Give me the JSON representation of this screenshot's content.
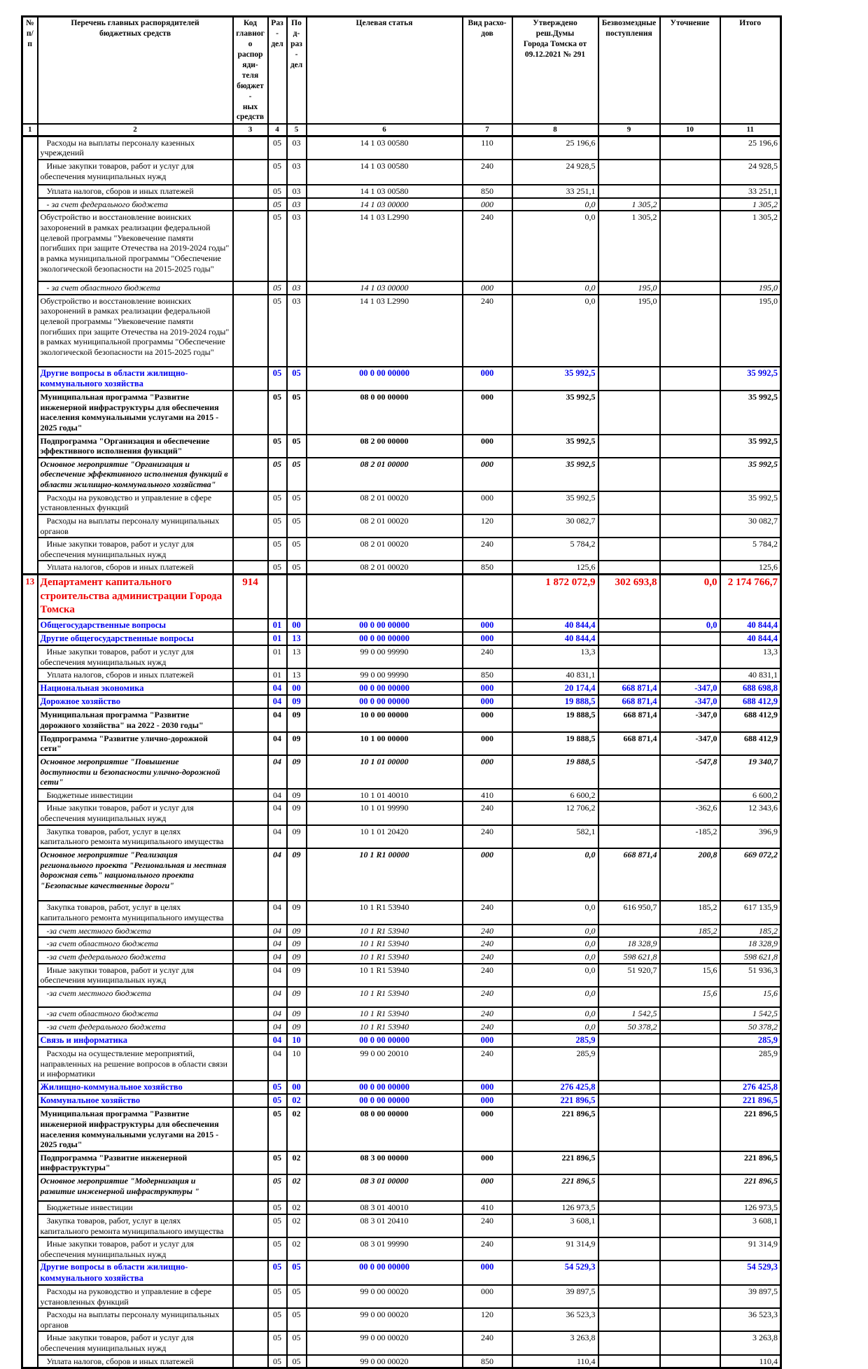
{
  "colors": {
    "section_blue": "#0000ee",
    "department_red": "#ee0000",
    "text": "#000000",
    "grid": "#000000",
    "page_bg": "#ffffff"
  },
  "table": {
    "headers": [
      "№\nп/п",
      "Перечень главных распорядителей\nбюджетных средств",
      "Код\nглавного\nраспоряди-\nтеля бюджет-\nных средств",
      "Раз-\nдел",
      "Под-\nраз-\nдел",
      "Целевая статья",
      "Вид расхо-\nдов",
      "Утверждено реш.Думы\nГорода Томска от\n09.12.2021 № 291",
      "Безвозмездные\nпоступления",
      "Уточнение",
      "Итого"
    ],
    "column_numbers": [
      "1",
      "2",
      "3",
      "4",
      "5",
      "6",
      "7",
      "8",
      "9",
      "10",
      "11"
    ],
    "rows": [
      {
        "t": "Расходы на выплаты персоналу казенных учреждений",
        "r": "05",
        "p": "03",
        "cs": "14 1 03 00580",
        "v": "110",
        "a": "25 196,6",
        "tot": "25 196,6",
        "s": "n",
        "ind": 1
      },
      {
        "t": "Иные закупки товаров, работ и услуг для обеспечения муниципальных нужд",
        "r": "05",
        "p": "03",
        "cs": "14 1 03 00580",
        "v": "240",
        "a": "24 928,5",
        "tot": "24 928,5",
        "s": "n",
        "ind": 1,
        "pad": 4
      },
      {
        "t": "Уплата налогов, сборов и иных платежей",
        "r": "05",
        "p": "03",
        "cs": "14 1 03 00580",
        "v": "850",
        "a": "33 251,1",
        "tot": "33 251,1",
        "s": "n",
        "ind": 1
      },
      {
        "t": "- за счет федерального бюджета",
        "r": "05",
        "p": "03",
        "cs": "14 1 03 00000",
        "v": "000",
        "a": "0,0",
        "g": "1 305,2",
        "tot": "1 305,2",
        "s": "i",
        "ind": 1
      },
      {
        "t": "Обустройство и восстановление воинских захоронений в рамках реализации федеральной целевой программы \"Увековечение памяти погибших при защите Отечества на 2019-2024 годы\" в рамка муниципальной программы \"Обеспечение экологической безопасности на 2015-2025 годы\"",
        "r": "05",
        "p": "03",
        "cs": "14 1 03 L2990",
        "v": "240",
        "a": "0,0",
        "g": "1 305,2",
        "tot": "1 305,2",
        "s": "n",
        "pad": 10
      },
      {
        "t": "- за счет областного бюджета",
        "r": "05",
        "p": "03",
        "cs": "14 1 03 00000",
        "v": "000",
        "a": "0,0",
        "g": "195,0",
        "tot": "195,0",
        "s": "i",
        "ind": 1
      },
      {
        "t": "Обустройство и восстановление воинских захоронений в рамках реализации федеральной целевой программы \"Увековечение памяти погибших при защите Отечества на 2019-2024 годы\" в рамках муниципальной программы \"Обеспечение экологической безопасности на 2015-2025 годы\"",
        "r": "05",
        "p": "03",
        "cs": "14 1 03 L2990",
        "v": "240",
        "a": "0,0",
        "g": "195,0",
        "tot": "195,0",
        "s": "n",
        "pad": 12
      },
      {
        "t": "Другие вопросы в области жилищно-коммунального хозяйства",
        "r": "05",
        "p": "05",
        "cs": "00 0 00 00000",
        "v": "000",
        "a": "35 992,5",
        "tot": "35 992,5",
        "s": "blue"
      },
      {
        "t": "Муниципальная программа \"Развитие инженерной инфраструктуры для обеспечения населения коммунальными услугами на 2015 - 2025 годы\"",
        "r": "05",
        "p": "05",
        "cs": "08 0 00 00000",
        "v": "000",
        "a": "35 992,5",
        "tot": "35 992,5",
        "s": "b"
      },
      {
        "t": "Подпрограмма \"Организация и обеспечение эффективного исполнения функций\"",
        "r": "05",
        "p": "05",
        "cs": "08 2 00 00000",
        "v": "000",
        "a": "35 992,5",
        "tot": "35 992,5",
        "s": "b"
      },
      {
        "t": "Основное мероприятие \"Организация и обеспечение эффективного исполнения функций в области жилищно-коммунального хозяйства\"",
        "r": "05",
        "p": "05",
        "cs": "08 2 01 00000",
        "v": "000",
        "a": "35 992,5",
        "tot": "35 992,5",
        "s": "bi"
      },
      {
        "t": "Расходы на руководство и управление в сфере установленных функций",
        "r": "05",
        "p": "05",
        "cs": "08 2 01 00020",
        "v": "000",
        "a": "35 992,5",
        "tot": "35 992,5",
        "s": "n",
        "ind": 1
      },
      {
        "t": "Расходы на выплаты персоналу муниципальных органов",
        "r": "05",
        "p": "05",
        "cs": "08 2 01 00020",
        "v": "120",
        "a": "30 082,7",
        "tot": "30 082,7",
        "s": "n",
        "ind": 1
      },
      {
        "t": "Иные закупки товаров, работ и услуг для обеспечения муниципальных нужд",
        "r": "05",
        "p": "05",
        "cs": "08 2 01 00020",
        "v": "240",
        "a": "5 784,2",
        "tot": "5 784,2",
        "s": "n",
        "ind": 1
      },
      {
        "t": "Уплата налогов, сборов и иных платежей",
        "r": "05",
        "p": "05",
        "cs": "08 2 01 00020",
        "v": "850",
        "a": "125,6",
        "tot": "125,6",
        "s": "n",
        "ind": 1
      },
      {
        "num": "13",
        "t": "Департамент капитального строительства администрации Города Томска",
        "c": "914",
        "a": "1 872 072,9",
        "g": "302 693,8",
        "u": "0,0",
        "tot": "2 174 766,7",
        "s": "red"
      },
      {
        "t": "Общегосударственные вопросы",
        "r": "01",
        "p": "00",
        "cs": "00 0 00 00000",
        "v": "000",
        "a": "40 844,4",
        "u": "0,0",
        "tot": "40 844,4",
        "s": "blue"
      },
      {
        "t": "Другие общегосударственные вопросы",
        "r": "01",
        "p": "13",
        "cs": "00 0 00 00000",
        "v": "000",
        "a": "40 844,4",
        "tot": "40 844,4",
        "s": "blue"
      },
      {
        "t": "Иные закупки товаров, работ и услуг для обеспечения муниципальных нужд",
        "r": "01",
        "p": "13",
        "cs": "99 0 00 99990",
        "v": "240",
        "a": "13,3",
        "tot": "13,3",
        "s": "n",
        "ind": 1
      },
      {
        "t": "Уплата налогов, сборов и иных платежей",
        "r": "01",
        "p": "13",
        "cs": "99 0 00 99990",
        "v": "850",
        "a": "40 831,1",
        "tot": "40 831,1",
        "s": "n",
        "ind": 1
      },
      {
        "t": "Национальная экономика",
        "r": "04",
        "p": "00",
        "cs": "00 0 00 00000",
        "v": "000",
        "a": "20 174,4",
        "g": "668 871,4",
        "u": "-347,0",
        "tot": "688 698,8",
        "s": "blue"
      },
      {
        "t": "Дорожное хозяйство",
        "r": "04",
        "p": "09",
        "cs": "00 0 00 00000",
        "v": "000",
        "a": "19 888,5",
        "g": "668 871,4",
        "u": "-347,0",
        "tot": "688 412,9",
        "s": "blue"
      },
      {
        "t": "Муниципальная программа \"Развитие дорожного хозяйства\" на 2022 - 2030 годы\"",
        "r": "04",
        "p": "09",
        "cs": "10 0 00 00000",
        "v": "000",
        "a": "19 888,5",
        "g": "668 871,4",
        "u": "-347,0",
        "tot": "688 412,9",
        "s": "b"
      },
      {
        "t": "Подпрограмма \"Развитие улично-дорожной сети\"",
        "r": "04",
        "p": "09",
        "cs": "10 1 00 00000",
        "v": "000",
        "a": "19 888,5",
        "g": "668 871,4",
        "u": "-347,0",
        "tot": "688 412,9",
        "s": "b"
      },
      {
        "t": "Основное мероприятие \"Повышение доступности и безопасности улично-дорожной сети\"",
        "r": "04",
        "p": "09",
        "cs": "10 1 01 00000",
        "v": "000",
        "a": "19 888,5",
        "u": "-547,8",
        "tot": "19 340,7",
        "s": "bi"
      },
      {
        "t": "Бюджетные инвестиции",
        "r": "04",
        "p": "09",
        "cs": "10 1 01 40010",
        "v": "410",
        "a": "6 600,2",
        "tot": "6 600,2",
        "s": "n",
        "ind": 1
      },
      {
        "t": "Иные закупки товаров, работ и услуг для обеспечения муниципальных нужд",
        "r": "04",
        "p": "09",
        "cs": "10 1 01 99990",
        "v": "240",
        "a": "12 706,2",
        "u": "-362,6",
        "tot": "12 343,6",
        "s": "n",
        "ind": 1
      },
      {
        "t": "Закупка товаров, работ, услуг в целях капитального ремонта муниципального имущества",
        "r": "04",
        "p": "09",
        "cs": "10 1 01 20420",
        "v": "240",
        "a": "582,1",
        "u": "-185,2",
        "tot": "396,9",
        "s": "n",
        "ind": 1
      },
      {
        "t": "Основное мероприятие \"Реализация регионального проекта \"Региональная и местная дорожная сеть\" национального проекта \"Безопасные качественные дороги\"",
        "r": "04",
        "p": "09",
        "cs": "10 1 R1 00000",
        "v": "000",
        "a": "0,0",
        "g": "668 871,4",
        "u": "200,8",
        "tot": "669 072,2",
        "s": "bi",
        "pad": 14
      },
      {
        "t": "Закупка товаров, работ, услуг в целях капитального ремонта муниципального имущества",
        "r": "04",
        "p": "09",
        "cs": "10 1 R1 53940",
        "v": "240",
        "a": "0,0",
        "g": "616 950,7",
        "u": "185,2",
        "tot": "617 135,9",
        "s": "n",
        "ind": 1
      },
      {
        "t": "-за счет местного бюджета",
        "r": "04",
        "p": "09",
        "cs": "10 1 R1 53940",
        "v": "240",
        "a": "0,0",
        "u": "185,2",
        "tot": "185,2",
        "s": "i",
        "ind": 1
      },
      {
        "t": "-за счет областного бюджета",
        "r": "04",
        "p": "09",
        "cs": "10 1 R1 53940",
        "v": "240",
        "a": "0,0",
        "g": "18 328,9",
        "tot": "18 328,9",
        "s": "i",
        "ind": 1
      },
      {
        "t": "-за счет федерального бюджета",
        "r": "04",
        "p": "09",
        "cs": "10 1 R1 53940",
        "v": "240",
        "a": "0,0",
        "g": "598 621,8",
        "tot": "598 621,8",
        "s": "i",
        "ind": 1
      },
      {
        "t": "Иные закупки товаров, работ и услуг для обеспечения муниципальных нужд",
        "r": "04",
        "p": "09",
        "cs": "10 1 R1 53940",
        "v": "240",
        "a": "0,0",
        "g": "51 920,7",
        "u": "15,6",
        "tot": "51 936,3",
        "s": "n",
        "ind": 1
      },
      {
        "t": "-за счет местного бюджета",
        "r": "04",
        "p": "09",
        "cs": "10 1 R1 53940",
        "v": "240",
        "a": "0,0",
        "u": "15,6",
        "tot": "15,6",
        "s": "i",
        "ind": 1,
        "pad": 12
      },
      {
        "t": "-за счет областного бюджета",
        "r": "04",
        "p": "09",
        "cs": "10 1 R1 53940",
        "v": "240",
        "a": "0,0",
        "g": "1 542,5",
        "tot": "1 542,5",
        "s": "i",
        "ind": 1
      },
      {
        "t": "-за счет федерального бюджета",
        "r": "04",
        "p": "09",
        "cs": "10 1 R1 53940",
        "v": "240",
        "a": "0,0",
        "g": "50 378,2",
        "tot": "50 378,2",
        "s": "i",
        "ind": 1
      },
      {
        "t": "Связь и информатика",
        "r": "04",
        "p": "10",
        "cs": "00 0 00 00000",
        "v": "000",
        "a": "285,9",
        "tot": "285,9",
        "s": "blue"
      },
      {
        "t": "Расходы на осуществление мероприятий, направленных на решение вопросов в области связи и информатики",
        "r": "04",
        "p": "10",
        "cs": "99 0 00 20010",
        "v": "240",
        "a": "285,9",
        "tot": "285,9",
        "s": "n",
        "ind": 1
      },
      {
        "t": "Жилищно-коммунальное хозяйство",
        "r": "05",
        "p": "00",
        "cs": "00 0 00 00000",
        "v": "000",
        "a": "276 425,8",
        "tot": "276 425,8",
        "s": "blue"
      },
      {
        "t": "Коммунальное хозяйство",
        "r": "05",
        "p": "02",
        "cs": "00 0 00 00000",
        "v": "000",
        "a": "221 896,5",
        "tot": "221 896,5",
        "s": "blue"
      },
      {
        "t": "Муниципальная программа \"Развитие инженерной инфраструктуры для обеспечения населения коммунальными услугами на 2015 - 2025 годы\"",
        "r": "05",
        "p": "02",
        "cs": "08 0 00 00000",
        "v": "000",
        "a": "221 896,5",
        "tot": "221 896,5",
        "s": "b"
      },
      {
        "t": "Подпрограмма \"Развитие инженерной инфраструктуры\"",
        "r": "05",
        "p": "02",
        "cs": "08 3 00 00000",
        "v": "000",
        "a": "221 896,5",
        "tot": "221 896,5",
        "s": "b"
      },
      {
        "t": "Основное мероприятие \"Модернизация и развитие инженерной инфраструктуры \"",
        "r": "05",
        "p": "02",
        "cs": "08 3 01 00000",
        "v": "000",
        "a": "221 896,5",
        "tot": "221 896,5",
        "s": "bi",
        "pad": 6
      },
      {
        "t": "Бюджетные инвестиции",
        "r": "05",
        "p": "02",
        "cs": "08 3 01 40010",
        "v": "410",
        "a": "126 973,5",
        "tot": "126 973,5",
        "s": "n",
        "ind": 1
      },
      {
        "t": "Закупка товаров, работ, услуг в целях капитального ремонта муниципального имущества",
        "r": "05",
        "p": "02",
        "cs": "08 3 01 20410",
        "v": "240",
        "a": "3 608,1",
        "tot": "3 608,1",
        "s": "n",
        "ind": 1
      },
      {
        "t": "Иные закупки товаров, работ и услуг для обеспечения муниципальных нужд",
        "r": "05",
        "p": "02",
        "cs": "08 3 01 99990",
        "v": "240",
        "a": "91 314,9",
        "tot": "91 314,9",
        "s": "n",
        "ind": 1
      },
      {
        "t": "Другие вопросы в области жилищно-коммунального хозяйства",
        "r": "05",
        "p": "05",
        "cs": "00 0 00 00000",
        "v": "000",
        "a": "54 529,3",
        "tot": "54 529,3",
        "s": "blue"
      },
      {
        "t": "Расходы на руководство и управление в сфере установленных функций",
        "r": "05",
        "p": "05",
        "cs": "99 0 00 00020",
        "v": "000",
        "a": "39 897,5",
        "tot": "39 897,5",
        "s": "n",
        "ind": 1
      },
      {
        "t": "Расходы на выплаты персоналу муниципальных органов",
        "r": "05",
        "p": "05",
        "cs": "99 0 00 00020",
        "v": "120",
        "a": "36 523,3",
        "tot": "36 523,3",
        "s": "n",
        "ind": 1
      },
      {
        "t": "Иные закупки товаров, работ и услуг для обеспечения муниципальных нужд",
        "r": "05",
        "p": "05",
        "cs": "99 0 00 00020",
        "v": "240",
        "a": "3 263,8",
        "tot": "3 263,8",
        "s": "n",
        "ind": 1
      },
      {
        "t": "Уплата налогов, сборов и иных платежей",
        "r": "05",
        "p": "05",
        "cs": "99 0 00 00020",
        "v": "850",
        "a": "110,4",
        "tot": "110,4",
        "s": "n",
        "ind": 1
      }
    ]
  }
}
